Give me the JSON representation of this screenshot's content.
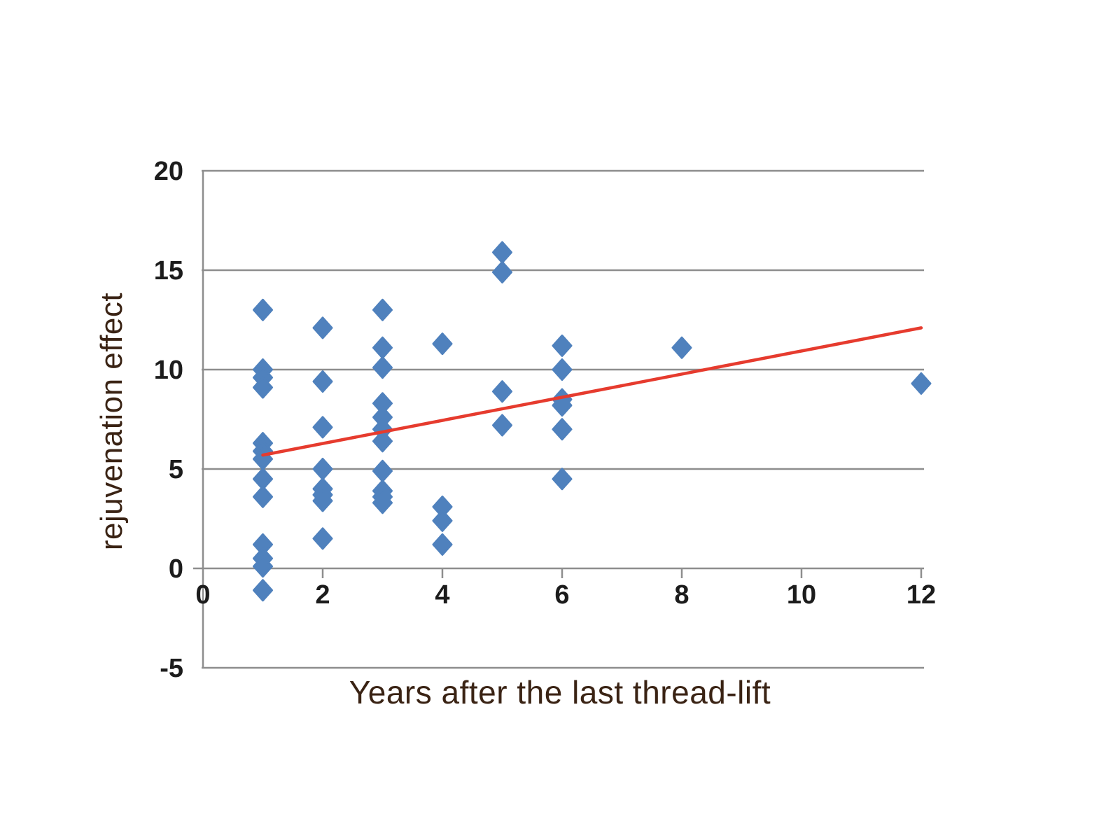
{
  "chart_data": {
    "type": "scatter",
    "title": "",
    "xlabel": "Years after the last thread-lift",
    "ylabel": "rejuvenation effect",
    "xlim": [
      0,
      12
    ],
    "ylim": [
      -5,
      20
    ],
    "x_ticks": [
      0,
      2,
      4,
      6,
      8,
      10,
      12
    ],
    "y_ticks": [
      20,
      15,
      10,
      5,
      0,
      -5
    ],
    "grid": "horizontal-gridlines-on",
    "legend": "none",
    "marker_shape": "diamond",
    "series": [
      {
        "name": "rejuvenation-effect-points",
        "type": "scatter",
        "color": "#4f81bd",
        "points": [
          [
            1,
            13.0
          ],
          [
            1,
            10.0
          ],
          [
            1,
            9.6
          ],
          [
            1,
            9.1
          ],
          [
            1,
            6.3
          ],
          [
            1,
            5.9
          ],
          [
            1,
            5.5
          ],
          [
            1,
            4.5
          ],
          [
            1,
            3.6
          ],
          [
            1,
            1.2
          ],
          [
            1,
            0.5
          ],
          [
            1,
            0.1
          ],
          [
            1,
            -1.1
          ],
          [
            2,
            12.1
          ],
          [
            2,
            9.4
          ],
          [
            2,
            7.1
          ],
          [
            2,
            5.0
          ],
          [
            2,
            4.0
          ],
          [
            2,
            3.7
          ],
          [
            2,
            3.4
          ],
          [
            2,
            1.5
          ],
          [
            3,
            13.0
          ],
          [
            3,
            11.1
          ],
          [
            3,
            10.1
          ],
          [
            3,
            8.3
          ],
          [
            3,
            7.6
          ],
          [
            3,
            7.0
          ],
          [
            3,
            6.4
          ],
          [
            3,
            4.9
          ],
          [
            3,
            3.9
          ],
          [
            3,
            3.6
          ],
          [
            3,
            3.3
          ],
          [
            4,
            11.3
          ],
          [
            4,
            3.1
          ],
          [
            4,
            2.4
          ],
          [
            4,
            1.2
          ],
          [
            5,
            15.9
          ],
          [
            5,
            14.9
          ],
          [
            5,
            8.9
          ],
          [
            5,
            7.2
          ],
          [
            6,
            11.2
          ],
          [
            6,
            10.0
          ],
          [
            6,
            8.5
          ],
          [
            6,
            8.2
          ],
          [
            6,
            7.0
          ],
          [
            6,
            4.5
          ],
          [
            8,
            11.1
          ],
          [
            12,
            9.3
          ]
        ]
      },
      {
        "name": "trend-line",
        "type": "line",
        "color": "#e63b2e",
        "points": [
          [
            1,
            5.7
          ],
          [
            12,
            12.1
          ]
        ]
      }
    ],
    "colors": {
      "marker": "#4f81bd",
      "trend": "#e63b2e",
      "gridline": "#8e8e8e",
      "tick_text": "#1c1c1c",
      "title_text": "#3a2314",
      "background": "#ffffff"
    }
  }
}
